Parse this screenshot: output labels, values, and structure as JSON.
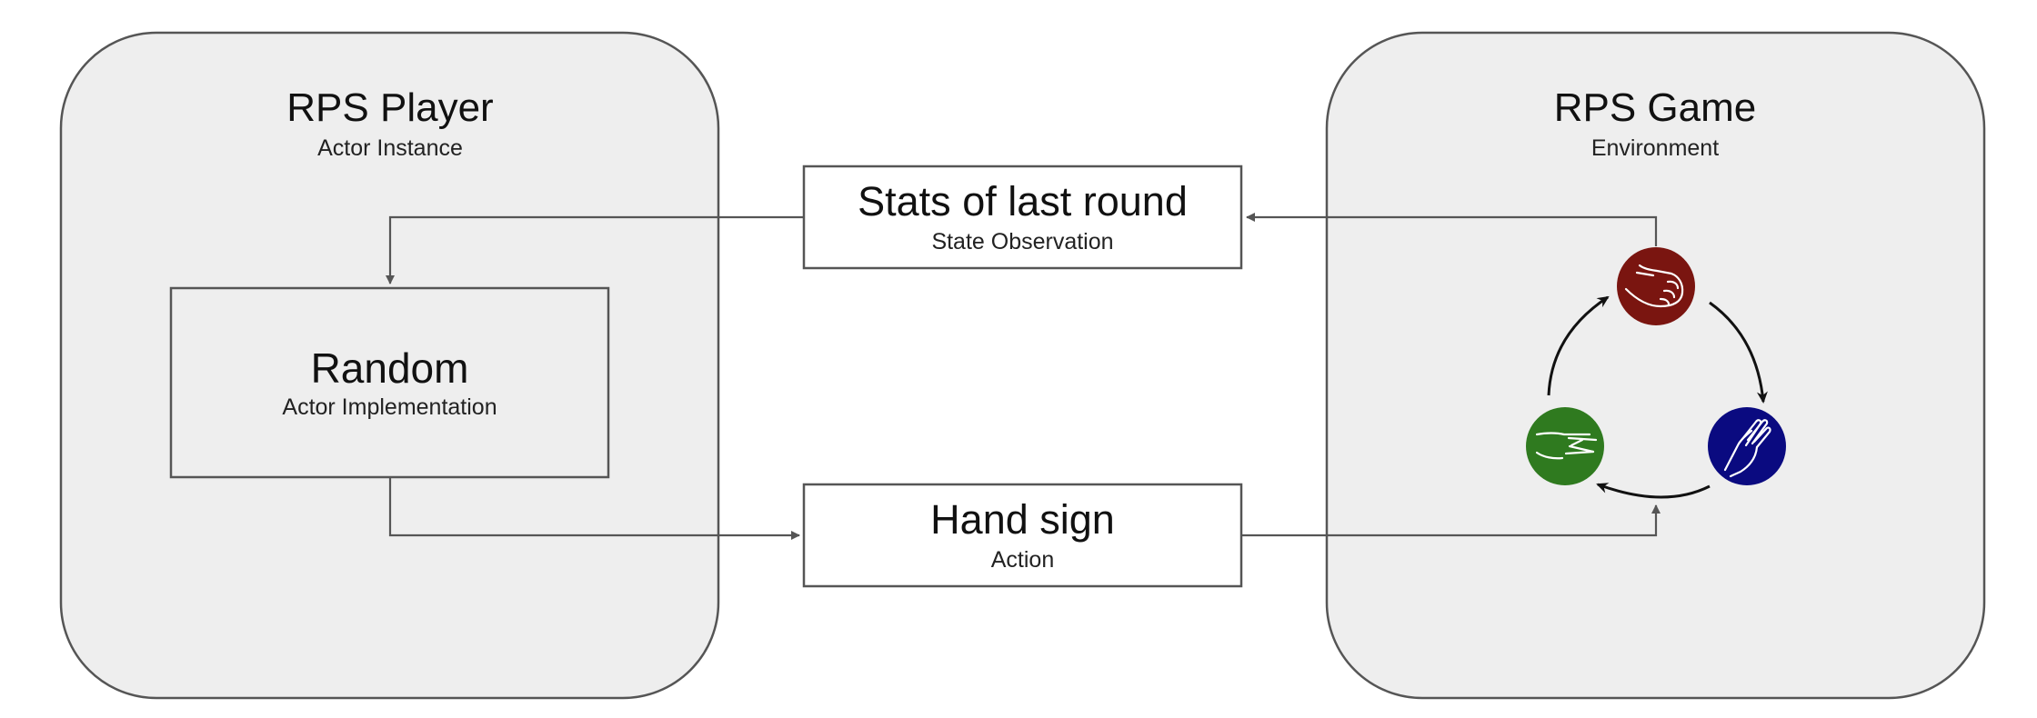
{
  "player": {
    "title": "RPS Player",
    "subtitle": "Actor Instance"
  },
  "game": {
    "title": "RPS Game",
    "subtitle": "Environment"
  },
  "implementation": {
    "title": "Random",
    "subtitle": "Actor Implementation"
  },
  "observation": {
    "title": "Stats of last round",
    "subtitle": "State Observation"
  },
  "action": {
    "title": "Hand sign",
    "subtitle": "Action"
  },
  "hand_signs": [
    {
      "name": "rock",
      "icon": "fist-icon",
      "color": "#7a1510"
    },
    {
      "name": "paper",
      "icon": "open-hand-icon",
      "color": "#0a0a80"
    },
    {
      "name": "scissors",
      "icon": "two-fingers-icon",
      "color": "#2f7a1f"
    }
  ],
  "colors": {
    "container_fill": "#eeeeee",
    "container_stroke": "#555555",
    "box_stroke": "#555555",
    "connector": "#555555",
    "cycle_arrow": "#111111"
  }
}
